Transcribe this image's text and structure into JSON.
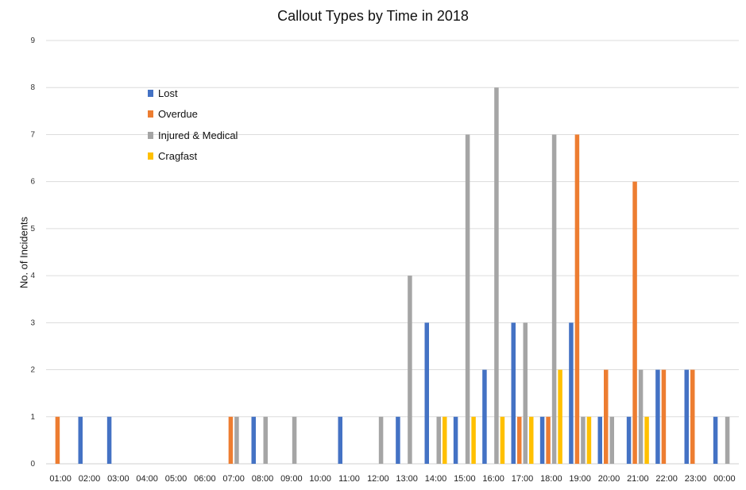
{
  "chart_data": {
    "type": "bar",
    "title": "Callout Types by Time in 2018",
    "xlabel": "",
    "ylabel": "No. of Incidents",
    "ylim": [
      0,
      9
    ],
    "yticks": [
      0,
      1,
      2,
      3,
      4,
      5,
      6,
      7,
      8,
      9
    ],
    "grid": true,
    "legend_position": "top-left",
    "categories": [
      "01:00",
      "02:00",
      "03:00",
      "04:00",
      "05:00",
      "06:00",
      "07:00",
      "08:00",
      "09:00",
      "10:00",
      "11:00",
      "12:00",
      "13:00",
      "14:00",
      "15:00",
      "16:00",
      "17:00",
      "18:00",
      "19:00",
      "20:00",
      "21:00",
      "22:00",
      "23:00",
      "00:00"
    ],
    "series": [
      {
        "name": "Lost",
        "color": "#4472C4",
        "values": [
          0,
          1,
          1,
          0,
          0,
          0,
          0,
          1,
          0,
          0,
          1,
          0,
          1,
          3,
          1,
          2,
          3,
          1,
          3,
          1,
          1,
          2,
          2,
          1
        ]
      },
      {
        "name": "Overdue",
        "color": "#ED7D31",
        "values": [
          1,
          0,
          0,
          0,
          0,
          0,
          1,
          0,
          0,
          0,
          0,
          0,
          0,
          0,
          0,
          0,
          1,
          1,
          7,
          2,
          6,
          2,
          2,
          0
        ]
      },
      {
        "name": "Injured & Medical",
        "color": "#A5A5A5",
        "values": [
          0,
          0,
          0,
          0,
          0,
          0,
          1,
          1,
          1,
          0,
          0,
          1,
          4,
          1,
          7,
          8,
          3,
          7,
          1,
          1,
          2,
          0,
          0,
          1
        ]
      },
      {
        "name": "Cragfast",
        "color": "#FFC000",
        "values": [
          0,
          0,
          0,
          0,
          0,
          0,
          0,
          0,
          0,
          0,
          0,
          0,
          0,
          1,
          1,
          1,
          1,
          2,
          1,
          0,
          1,
          0,
          0,
          0
        ]
      }
    ]
  }
}
